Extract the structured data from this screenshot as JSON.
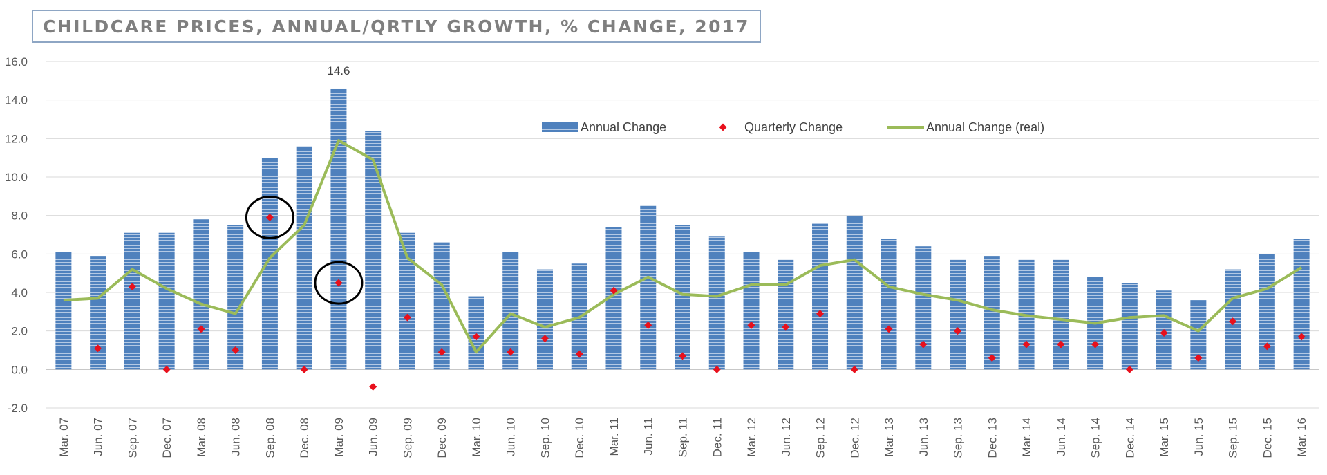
{
  "chart_data": {
    "type": "bar",
    "title": "CHILDCARE PRICES, ANNUAL/QRTLY GROWTH, % CHANGE, 2017",
    "categories": [
      "Mar. 07",
      "Jun. 07",
      "Sep. 07",
      "Dec. 07",
      "Mar. 08",
      "Jun. 08",
      "Sep. 08",
      "Dec. 08",
      "Mar. 09",
      "Jun. 09",
      "Sep. 09",
      "Dec. 09",
      "Mar. 10",
      "Jun. 10",
      "Sep. 10",
      "Dec. 10",
      "Mar. 11",
      "Jun. 11",
      "Sep. 11",
      "Dec. 11",
      "Mar. 12",
      "Jun. 12",
      "Sep. 12",
      "Dec. 12",
      "Mar. 13",
      "Jun. 13",
      "Sep. 13",
      "Dec. 13",
      "Mar. 14",
      "Jun. 14",
      "Sep. 14",
      "Dec. 14",
      "Mar. 15",
      "Jun. 15",
      "Sep. 15",
      "Dec. 15",
      "Mar. 16"
    ],
    "series": [
      {
        "name": "Annual Change",
        "type": "bar",
        "color": "#4f81bd",
        "values": [
          6.1,
          5.9,
          7.1,
          7.1,
          7.8,
          7.5,
          11.0,
          11.6,
          14.6,
          12.4,
          7.1,
          6.6,
          3.8,
          6.1,
          5.2,
          5.5,
          7.4,
          8.5,
          7.5,
          6.9,
          6.1,
          5.7,
          7.6,
          8.0,
          6.8,
          6.4,
          5.7,
          5.9,
          5.7,
          5.7,
          4.8,
          4.5,
          4.1,
          3.6,
          5.2,
          6.0,
          6.8
        ]
      },
      {
        "name": "Quarterly Change",
        "type": "scatter",
        "color": "#e8101c",
        "values": [
          null,
          1.1,
          4.3,
          0.0,
          2.1,
          1.0,
          7.9,
          0.0,
          4.5,
          -0.9,
          2.7,
          0.9,
          1.7,
          0.9,
          1.6,
          0.8,
          4.1,
          2.3,
          0.7,
          0.0,
          2.3,
          2.2,
          2.9,
          0.0,
          2.1,
          1.3,
          2.0,
          0.6,
          1.3,
          1.3,
          1.3,
          0.0,
          1.9,
          0.6,
          2.5,
          1.2,
          1.7
        ]
      },
      {
        "name": "Annual Change (real)",
        "type": "line",
        "color": "#9bbb59",
        "values": [
          3.6,
          3.7,
          5.2,
          4.2,
          3.4,
          2.9,
          5.8,
          7.5,
          11.9,
          10.9,
          5.8,
          4.4,
          0.9,
          2.9,
          2.2,
          2.7,
          3.9,
          4.8,
          3.9,
          3.8,
          4.4,
          4.4,
          5.4,
          5.7,
          4.3,
          3.9,
          3.6,
          3.1,
          2.8,
          2.6,
          2.4,
          2.7,
          2.8,
          2.0,
          3.7,
          4.2,
          5.3
        ]
      }
    ],
    "data_labels": [
      {
        "category": "Mar. 09",
        "text": "14.6"
      }
    ],
    "highlight_circles": [
      {
        "category": "Sep. 08",
        "series": "Quarterly Change"
      },
      {
        "category": "Mar. 09",
        "series": "Quarterly Change"
      }
    ],
    "y_ticks": [
      "16.0",
      "14.0",
      "12.0",
      "10.0",
      "8.0",
      "6.0",
      "4.0",
      "2.0",
      "0.0",
      "-2.0"
    ],
    "ylim": [
      -2,
      16
    ],
    "grid": true,
    "legend_position": "top-center"
  }
}
